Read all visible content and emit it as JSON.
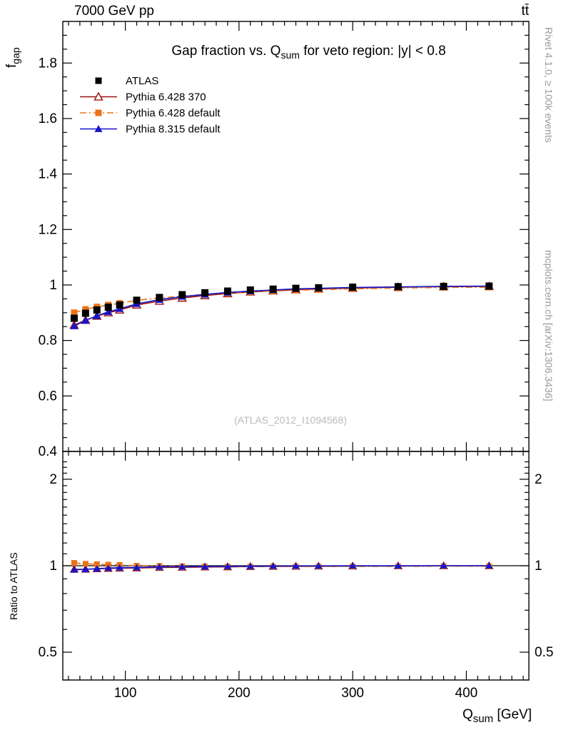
{
  "header": {
    "left": "7000 GeV pp",
    "right": "tt̄"
  },
  "side_texts": {
    "top": "Rivet 4.1.0, ≥ 100k events",
    "bottom": "mcplots.cern.ch [arXiv:1306.3436]"
  },
  "watermark": "(ATLAS_2012_I1094568)",
  "chart_data": {
    "type": "line",
    "title": "Gap fraction vs. Q_sum for veto region: |y| < 0.8",
    "title_parts": {
      "pre": "Gap fraction vs. Q",
      "sub": "sum",
      "post": " for veto region: |y| < 0.8"
    },
    "xlabel": "Q_sum [GeV]",
    "xlabel_parts": {
      "pre": "Q",
      "sub": "sum",
      "post": " [GeV]"
    },
    "ylabel": "f_gap",
    "ylabel_parts": {
      "pre": "f",
      "sub": "gap"
    },
    "ratio_label": "Ratio to ATLAS",
    "legend_position": "top-left",
    "grid": false,
    "xlim": [
      45,
      455
    ],
    "ylim": [
      0.4,
      1.95
    ],
    "ratio_ylim": [
      0.4,
      2.5
    ],
    "ratio_scale": "log",
    "x_major_ticks": [
      100,
      200,
      300,
      400
    ],
    "y_major_ticks": [
      0.4,
      0.6,
      0.8,
      1.0,
      1.2,
      1.4,
      1.6,
      1.8
    ],
    "ratio_major_ticks": [
      0.5,
      1,
      2
    ],
    "x": [
      55,
      65,
      75,
      85,
      95,
      110,
      130,
      150,
      170,
      190,
      210,
      230,
      250,
      270,
      300,
      340,
      380,
      420
    ],
    "series": [
      {
        "name": "ATLAS",
        "color": "#000000",
        "marker": "square-filled",
        "line": "none",
        "values": [
          0.88,
          0.898,
          0.91,
          0.92,
          0.928,
          0.945,
          0.955,
          0.965,
          0.972,
          0.978,
          0.982,
          0.985,
          0.988,
          0.99,
          0.992,
          0.994,
          0.995,
          0.996
        ]
      },
      {
        "name": "Pythia 6.428 370",
        "color": "#991111",
        "marker": "triangle-open",
        "line": "solid",
        "values": [
          0.855,
          0.873,
          0.888,
          0.9,
          0.91,
          0.928,
          0.942,
          0.953,
          0.962,
          0.969,
          0.975,
          0.979,
          0.983,
          0.986,
          0.989,
          0.992,
          0.994,
          0.995
        ]
      },
      {
        "name": "Pythia 6.428 default",
        "color": "#e8731a",
        "marker": "square-filled",
        "line": "dashdot",
        "values": [
          0.9,
          0.912,
          0.921,
          0.928,
          0.934,
          0.945,
          0.953,
          0.96,
          0.966,
          0.971,
          0.975,
          0.978,
          0.981,
          0.983,
          0.986,
          0.989,
          0.991,
          0.992
        ]
      },
      {
        "name": "Pythia 8.315 default",
        "color": "#1515cc",
        "marker": "triangle-filled",
        "line": "solid",
        "values": [
          0.852,
          0.872,
          0.889,
          0.903,
          0.914,
          0.932,
          0.947,
          0.958,
          0.966,
          0.973,
          0.978,
          0.982,
          0.986,
          0.988,
          0.991,
          0.993,
          0.995,
          0.996
        ]
      }
    ],
    "ratio_reference": 1
  }
}
